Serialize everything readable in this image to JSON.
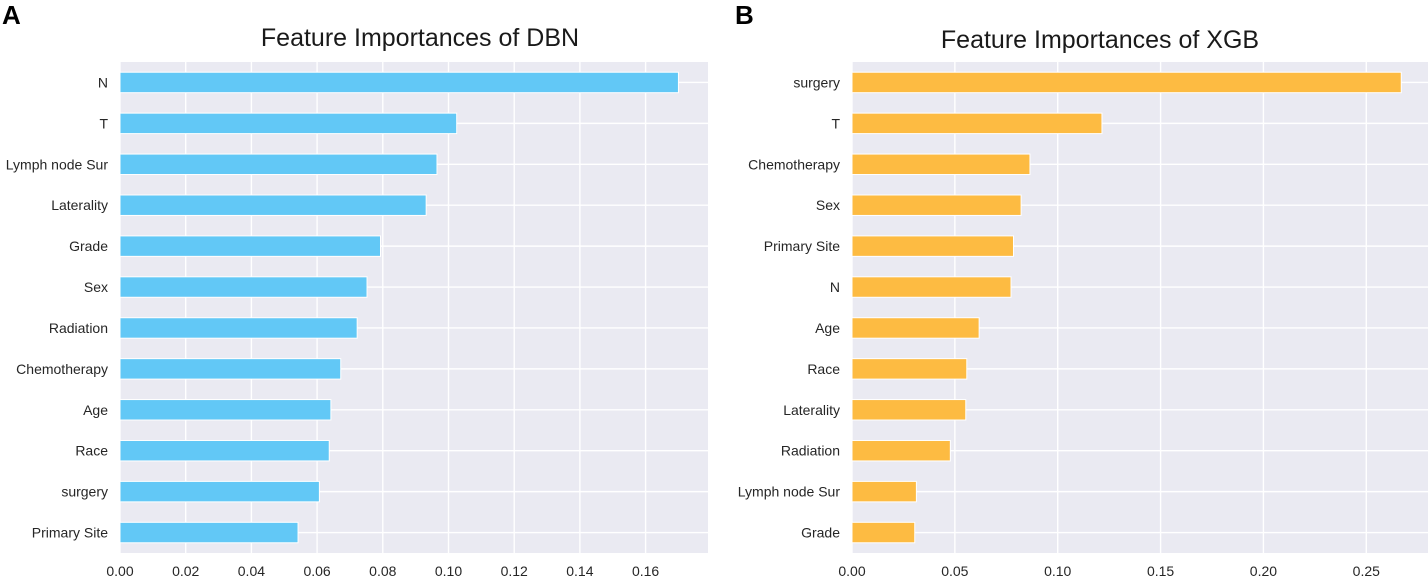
{
  "chart_data": [
    {
      "panel_label": "A",
      "type": "bar",
      "orientation": "horizontal",
      "title": "Feature Importances of DBN",
      "xlabel": "",
      "ylabel": "",
      "xlim": [
        0,
        0.179
      ],
      "xticks": [
        "0.00",
        "0.02",
        "0.04",
        "0.06",
        "0.08",
        "0.10",
        "0.12",
        "0.14",
        "0.16"
      ],
      "xtick_values": [
        0,
        0.02,
        0.04,
        0.06,
        0.08,
        0.1,
        0.12,
        0.14,
        0.16
      ],
      "grid": true,
      "bar_color": "#62c8f6",
      "background_color": "#eaeaf2",
      "categories": [
        "N",
        "T",
        "Lymph node Sur",
        "Laterality",
        "Grade",
        "Sex",
        "Radiation",
        "Chemotherapy",
        "Age",
        "Race",
        "surgery",
        "Primary Site"
      ],
      "values": [
        0.17,
        0.1025,
        0.0965,
        0.0932,
        0.0793,
        0.0752,
        0.0722,
        0.0672,
        0.0642,
        0.0637,
        0.0607,
        0.0542
      ]
    },
    {
      "panel_label": "B",
      "type": "bar",
      "orientation": "horizontal",
      "title": "Feature Importances of XGB",
      "xlabel": "",
      "ylabel": "",
      "xlim": [
        0,
        0.28
      ],
      "xticks": [
        "0.00",
        "0.05",
        "0.10",
        "0.15",
        "0.20",
        "0.25"
      ],
      "xtick_values": [
        0,
        0.05,
        0.1,
        0.15,
        0.2,
        0.25
      ],
      "grid": true,
      "bar_color": "#fdbb42",
      "background_color": "#eaeaf2",
      "categories": [
        "surgery",
        "T",
        "Chemotherapy",
        "Sex",
        "Primary Site",
        "N",
        "Age",
        "Race",
        "Laterality",
        "Radiation",
        "Lymph node Sur",
        "Grade"
      ],
      "values": [
        0.267,
        0.1215,
        0.0865,
        0.0822,
        0.0785,
        0.0773,
        0.0618,
        0.0558,
        0.0553,
        0.0478,
        0.0313,
        0.0305
      ]
    }
  ]
}
